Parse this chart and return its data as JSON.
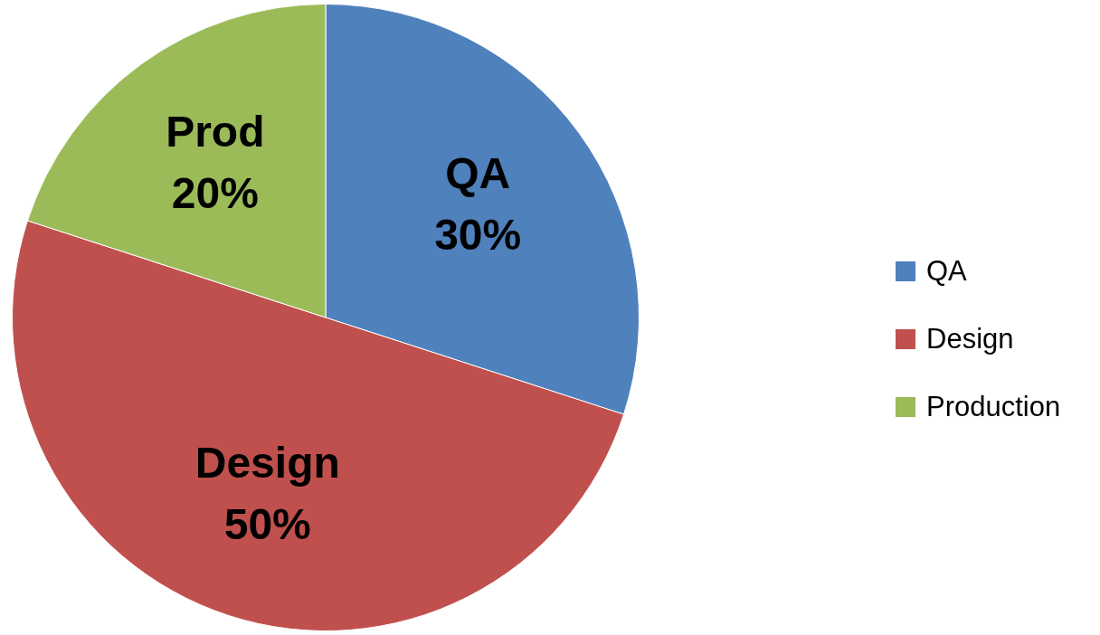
{
  "chart_data": {
    "type": "pie",
    "categories": [
      "QA",
      "Design",
      "Production"
    ],
    "values": [
      30,
      50,
      20
    ],
    "colors": [
      "#4f81bd",
      "#c0504d",
      "#9bbb59"
    ],
    "value_labels": [
      "QA\n30%",
      "Design\n50%",
      "Prod\n20%"
    ],
    "legend": "right"
  }
}
